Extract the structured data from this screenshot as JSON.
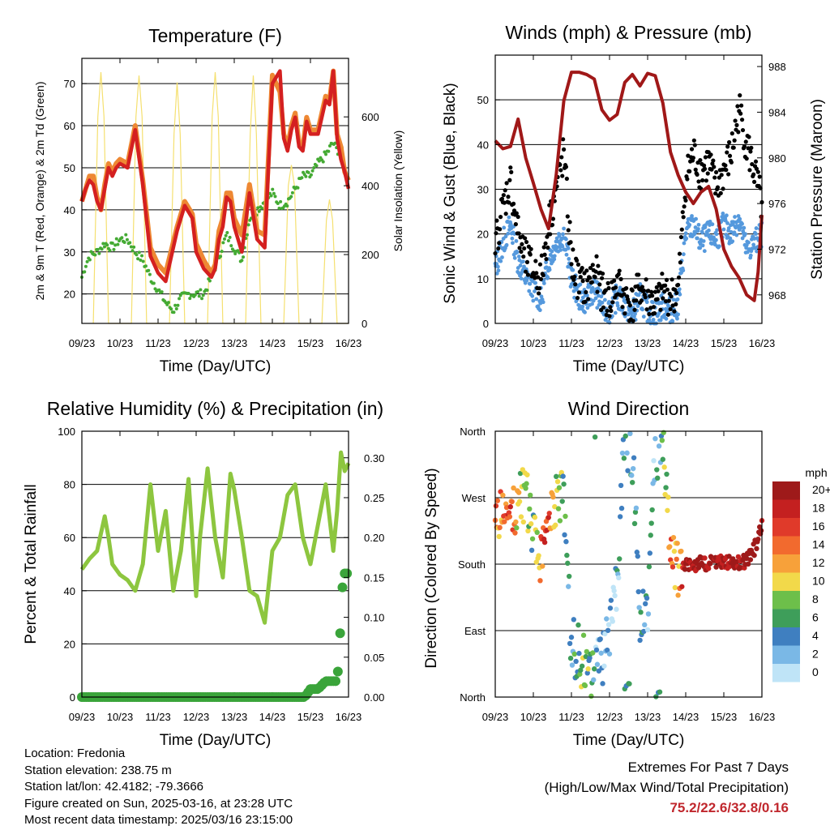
{
  "chart_data": [
    {
      "type": "line",
      "title": "Temperature (F)",
      "xlabel": "Time (Day/UTC)",
      "ylabel": "2m & 9m T (Red, Orange) & 2m Td (Green)",
      "ylabel_right": "Solar Insolation (Yellow)",
      "x_ticks": [
        "09/23",
        "10/23",
        "11/23",
        "12/23",
        "13/23",
        "14/23",
        "15/23",
        "16/23"
      ],
      "ylim": [
        13,
        76
      ],
      "y_ticks": [
        20,
        30,
        40,
        50,
        60,
        70
      ],
      "ylim_right": [
        0,
        770
      ],
      "y_ticks_right": [
        0,
        200,
        400,
        600
      ],
      "grid": true,
      "colors": {
        "t2m": "#d42020",
        "t9m": "#ee8833",
        "td2m": "#44aa33",
        "solar": "#f5e070"
      },
      "series": [
        {
          "key": "t9m",
          "x": [
            0,
            0.1,
            0.2,
            0.3,
            0.4,
            0.5,
            0.6,
            0.7,
            0.8,
            0.9,
            1.0,
            1.2,
            1.4,
            1.6,
            1.8,
            2.0,
            2.2,
            2.5,
            2.7,
            2.9,
            3.0,
            3.2,
            3.4,
            3.5,
            3.6,
            3.7,
            3.8,
            3.9,
            4.0,
            4.2,
            4.4,
            4.6,
            4.8,
            5.0,
            5.2,
            5.3,
            5.4,
            5.5,
            5.6,
            5.7,
            5.8,
            5.9,
            6.0,
            6.2,
            6.4,
            6.5,
            6.6,
            6.7,
            6.8,
            6.9,
            7.0
          ],
          "y": [
            42,
            45,
            48,
            48,
            43,
            40,
            46,
            51,
            49,
            51,
            52,
            51,
            60,
            47,
            31,
            27,
            25,
            36,
            42,
            39,
            32,
            28,
            25,
            27,
            35,
            38,
            44,
            44,
            38,
            34,
            46,
            35,
            34,
            72,
            68,
            58,
            55,
            60,
            63,
            56,
            55,
            62,
            59,
            59,
            67,
            66,
            73,
            58,
            55,
            49,
            47
          ]
        },
        {
          "key": "t2m",
          "x": [
            0,
            0.1,
            0.2,
            0.3,
            0.4,
            0.5,
            0.6,
            0.7,
            0.8,
            0.9,
            1.0,
            1.2,
            1.4,
            1.6,
            1.8,
            2.0,
            2.2,
            2.5,
            2.7,
            2.9,
            3.0,
            3.2,
            3.4,
            3.5,
            3.6,
            3.7,
            3.8,
            3.9,
            4.0,
            4.2,
            4.4,
            4.6,
            4.8,
            5.0,
            5.2,
            5.3,
            5.4,
            5.5,
            5.6,
            5.7,
            5.8,
            5.9,
            6.0,
            6.2,
            6.4,
            6.5,
            6.6,
            6.7,
            6.8,
            6.9,
            7.0
          ],
          "y": [
            42,
            45,
            47,
            46,
            42,
            40,
            45,
            50,
            48,
            50,
            51,
            50,
            59,
            46,
            29,
            25,
            23,
            35,
            41,
            38,
            30,
            26,
            24,
            26,
            33,
            36,
            43,
            42,
            36,
            30,
            44,
            33,
            31,
            70,
            73,
            57,
            54,
            59,
            62,
            55,
            54,
            61,
            58,
            58,
            66,
            65,
            73,
            57,
            52,
            49,
            45
          ]
        },
        {
          "key": "td2m",
          "x": [
            0,
            0.1,
            0.2,
            0.4,
            0.6,
            0.8,
            1.0,
            1.2,
            1.4,
            1.6,
            1.8,
            2.0,
            2.2,
            2.4,
            2.6,
            2.8,
            3.0,
            3.2,
            3.4,
            3.6,
            3.8,
            4.0,
            4.2,
            4.4,
            4.6,
            4.8,
            5.0,
            5.2,
            5.4,
            5.6,
            5.8,
            6.0,
            6.2,
            6.4,
            6.6,
            6.7,
            6.8,
            6.9,
            7.0
          ],
          "y": [
            24,
            27,
            29,
            30,
            32,
            31,
            33,
            33,
            30,
            28,
            24,
            21,
            18,
            16,
            19,
            20,
            20,
            20,
            24,
            29,
            34,
            31,
            28,
            38,
            40,
            42,
            44,
            41,
            42,
            45,
            48,
            48,
            51,
            53,
            56,
            54,
            55,
            50,
            45
          ]
        },
        {
          "key": "solar",
          "x": [
            0.3,
            0.42,
            0.5,
            0.58,
            0.7,
            1.3,
            1.42,
            1.5,
            1.58,
            1.7,
            2.3,
            2.42,
            2.5,
            2.58,
            2.7,
            3.3,
            3.42,
            3.5,
            3.58,
            3.7,
            4.3,
            4.42,
            4.5,
            4.58,
            4.7,
            5.3,
            5.42,
            5.5,
            5.58,
            5.7,
            6.3,
            6.42,
            6.5,
            6.58,
            6.7,
            7.0
          ],
          "y": [
            0,
            600,
            730,
            600,
            0,
            0,
            600,
            720,
            600,
            0,
            0,
            550,
            700,
            550,
            0,
            0,
            600,
            730,
            600,
            0,
            0,
            550,
            720,
            550,
            0,
            0,
            400,
            460,
            400,
            0,
            0,
            300,
            360,
            300,
            0,
            0
          ]
        }
      ]
    },
    {
      "type": "scatter",
      "title": "Winds (mph) & Pressure (mb)",
      "xlabel": "Time (Day/UTC)",
      "ylabel": "Sonic Wind & Gust (Blue, Black)",
      "ylabel_right": "Station Pressure (Maroon)",
      "x_ticks": [
        "09/23",
        "10/23",
        "11/23",
        "12/23",
        "13/23",
        "14/23",
        "15/23",
        "16/23"
      ],
      "ylim": [
        0,
        60
      ],
      "y_ticks": [
        0,
        10,
        20,
        30,
        40,
        50
      ],
      "ylim_right": [
        965.5,
        989
      ],
      "y_ticks_right": [
        968,
        972,
        976,
        980,
        984,
        988
      ],
      "grid": true,
      "colors": {
        "wind": "#5599dd",
        "gust": "#000000",
        "pressure": "#a01818"
      },
      "series": [
        {
          "key": "wind",
          "x": [
            0,
            0.2,
            0.4,
            0.6,
            0.8,
            1.0,
            1.2,
            1.4,
            1.6,
            1.8,
            2.0,
            2.2,
            2.4,
            2.6,
            2.8,
            3.0,
            3.2,
            3.4,
            3.6,
            3.8,
            4.0,
            4.2,
            4.4,
            4.6,
            4.8,
            5.0,
            5.2,
            5.4,
            5.6,
            5.8,
            6.0,
            6.2,
            6.4,
            6.6,
            6.8,
            7.0
          ],
          "y": [
            12,
            18,
            22,
            14,
            10,
            8,
            5,
            14,
            18,
            20,
            10,
            6,
            5,
            8,
            4,
            3,
            6,
            4,
            2,
            6,
            3,
            2,
            4,
            3,
            4,
            20,
            22,
            18,
            20,
            19,
            22,
            20,
            24,
            16,
            18,
            20
          ]
        },
        {
          "key": "gust",
          "x": [
            0,
            0.2,
            0.4,
            0.6,
            0.8,
            1.0,
            1.2,
            1.4,
            1.6,
            1.8,
            2.0,
            2.2,
            2.4,
            2.6,
            2.8,
            3.0,
            3.2,
            3.4,
            3.6,
            3.8,
            4.0,
            4.2,
            4.4,
            4.6,
            4.8,
            5.0,
            5.2,
            5.4,
            5.6,
            5.8,
            6.0,
            6.2,
            6.4,
            6.6,
            6.8,
            7.0
          ],
          "y": [
            18,
            26,
            32,
            20,
            14,
            12,
            10,
            22,
            30,
            38,
            14,
            9,
            8,
            12,
            7,
            5,
            9,
            6,
            4,
            8,
            6,
            4,
            7,
            6,
            7,
            32,
            38,
            34,
            36,
            30,
            34,
            38,
            48,
            40,
            34,
            26
          ]
        },
        {
          "key": "pressure",
          "x": [
            0,
            0.2,
            0.4,
            0.6,
            0.8,
            1.0,
            1.2,
            1.4,
            1.6,
            1.8,
            2.0,
            2.2,
            2.4,
            2.6,
            2.8,
            3.0,
            3.2,
            3.4,
            3.6,
            3.8,
            4.0,
            4.2,
            4.4,
            4.6,
            4.8,
            5.0,
            5.2,
            5.4,
            5.6,
            5.8,
            6.0,
            6.2,
            6.4,
            6.6,
            6.8,
            6.9,
            7.0
          ],
          "y": [
            981.5,
            980.8,
            981.0,
            983.4,
            980.0,
            977.8,
            975.5,
            973.8,
            978.5,
            985.0,
            987.5,
            987.5,
            987.3,
            986.9,
            984.2,
            983.3,
            983.8,
            986.6,
            987.3,
            986.3,
            987.4,
            987.2,
            984.8,
            980.5,
            978.5,
            977.0,
            976.0,
            977.0,
            977.5,
            975.5,
            972.0,
            970.5,
            969.5,
            968.0,
            967.5,
            970.0,
            975.0
          ]
        }
      ]
    },
    {
      "type": "line",
      "title": "Relative Humidity (%) & Precipitation (in)",
      "xlabel": "Time (Day/UTC)",
      "ylabel": "Percent & Total Rainfall",
      "x_ticks": [
        "09/23",
        "10/23",
        "11/23",
        "12/23",
        "13/23",
        "14/23",
        "15/23",
        "16/23"
      ],
      "ylim": [
        0,
        100
      ],
      "y_ticks": [
        0,
        20,
        40,
        60,
        80,
        100
      ],
      "ylim_right": [
        0,
        0.3333
      ],
      "y_ticks_right": [
        "0.00",
        "0.05",
        "0.10",
        "0.15",
        "0.20",
        "0.25",
        "0.30"
      ],
      "grid": true,
      "colors": {
        "rh": "#8dc63f",
        "precip": "#3aa43a"
      },
      "series": [
        {
          "key": "rh",
          "x": [
            0,
            0.1,
            0.2,
            0.4,
            0.6,
            0.7,
            0.8,
            1.0,
            1.2,
            1.4,
            1.6,
            1.8,
            2.0,
            2.2,
            2.4,
            2.6,
            2.8,
            3.0,
            3.1,
            3.3,
            3.5,
            3.7,
            3.9,
            4.0,
            4.2,
            4.4,
            4.6,
            4.8,
            5.0,
            5.2,
            5.4,
            5.6,
            5.8,
            6.0,
            6.2,
            6.4,
            6.6,
            6.7,
            6.8,
            6.9,
            7.0
          ],
          "y": [
            48,
            50,
            52,
            55,
            68,
            60,
            50,
            46,
            44,
            40,
            50,
            80,
            55,
            70,
            40,
            55,
            82,
            38,
            60,
            86,
            60,
            45,
            84,
            78,
            60,
            40,
            38,
            28,
            55,
            60,
            76,
            80,
            60,
            50,
            65,
            80,
            55,
            70,
            92,
            85,
            88
          ]
        },
        {
          "key": "precip",
          "x": [
            0,
            1,
            2,
            3,
            4,
            5,
            5.5,
            5.7,
            5.85,
            6.0,
            6.2,
            6.4,
            6.55,
            6.7,
            6.75,
            6.78,
            6.82,
            6.86,
            6.9,
            6.95,
            7.0
          ],
          "y": [
            0,
            0,
            0,
            0,
            0,
            0,
            0,
            0,
            0,
            0.01,
            0.01,
            0.02,
            0.02,
            0.02,
            0.05,
            0.08,
            0.13,
            0.145,
            0.155,
            0.155,
            0.155
          ]
        }
      ]
    },
    {
      "type": "scatter",
      "title": "Wind Direction",
      "xlabel": "Time (Day/UTC)",
      "ylabel": "Direction (Colored By Speed)",
      "x_ticks": [
        "09/23",
        "10/23",
        "11/23",
        "12/23",
        "13/23",
        "14/23",
        "15/23",
        "16/23"
      ],
      "y_ticks": [
        "North",
        "East",
        "South",
        "West",
        "North"
      ],
      "ylim": [
        0,
        360
      ],
      "grid": true,
      "legend": {
        "title": "mph",
        "placement": "right",
        "labels": [
          "20+",
          "18",
          "16",
          "14",
          "12",
          "10",
          "8",
          "6",
          "4",
          "2",
          "0"
        ],
        "colors": [
          "#9e1a1a",
          "#c42020",
          "#e03a2a",
          "#f26a2e",
          "#f7a13a",
          "#f2d94a",
          "#6dbf4a",
          "#3e9e5a",
          "#3f7fc0",
          "#7ab8e6",
          "#bfe4f7"
        ]
      },
      "x": [
        0,
        0.2,
        0.4,
        0.6,
        0.8,
        1.0,
        1.2,
        1.4,
        1.6,
        1.8,
        2.0,
        2.2,
        2.4,
        2.6,
        2.8,
        3.0,
        3.2,
        3.4,
        3.6,
        3.8,
        4.0,
        4.2,
        4.4,
        4.6,
        4.8,
        5.0,
        5.2,
        5.4,
        5.6,
        5.8,
        6.0,
        6.2,
        6.4,
        6.6,
        6.8,
        7.0
      ],
      "direction": [
        250,
        245,
        255,
        265,
        275,
        210,
        190,
        245,
        275,
        260,
        70,
        60,
        35,
        30,
        50,
        90,
        160,
        350,
        330,
        110,
        130,
        320,
        340,
        190,
        175,
        180,
        180,
        182,
        180,
        182,
        183,
        182,
        180,
        185,
        200,
        235
      ],
      "speed": [
        12,
        14,
        16,
        10,
        8,
        6,
        14,
        16,
        8,
        6,
        4,
        6,
        8,
        4,
        3,
        2,
        3,
        4,
        5,
        4,
        3,
        4,
        5,
        14,
        10,
        20,
        20,
        20,
        20,
        20,
        20,
        20,
        20,
        20,
        22,
        20
      ]
    }
  ],
  "info": {
    "location": "Location: Fredonia",
    "elevation": "Station elevation: 238.75 m",
    "latlon": "Station lat/lon: 42.4182; -79.3666",
    "created": "Figure created on Sun, 2025-03-16, at 23:28 UTC",
    "latest": "Most recent data timestamp: 2025/03/16 23:15:00"
  },
  "extremes": {
    "heading": "Extremes For Past 7 Days",
    "subheading": "(High/Low/Max Wind/Total Precipitation)",
    "values": "75.2/22.6/32.8/0.16"
  }
}
